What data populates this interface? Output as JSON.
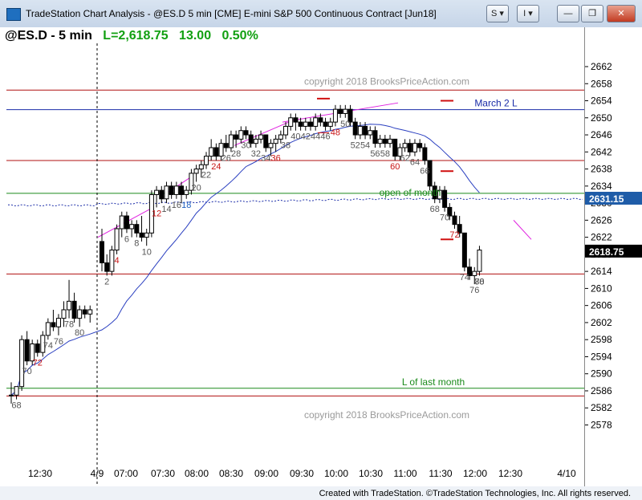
{
  "window": {
    "title": "TradeStation Chart Analysis - @ES.D 5 min [CME] E-mini S&P 500 Continuous Contract [Jun18]",
    "menu_s": "S",
    "menu_i": "I",
    "minimize": "—",
    "restore": "❐",
    "close": "✕"
  },
  "header": {
    "symbol": "@ES.D - 5 min",
    "last": "L=2,618.75",
    "change": "13.00",
    "pct": "0.50%"
  },
  "footer": "Created with TradeStation. ©TradeStation Technologies, Inc. All rights reserved.",
  "chart_data": {
    "type": "candlestick",
    "ylim": [
      2576,
      2666
    ],
    "y_ticks": [
      2578,
      2582,
      2586,
      2590,
      2594,
      2598,
      2602,
      2606,
      2610,
      2614,
      2618,
      2622,
      2626,
      2630,
      2634,
      2638,
      2642,
      2646,
      2650,
      2654,
      2658,
      2662
    ],
    "x_ticks": [
      "12:30",
      "4/9",
      "07:00",
      "07:30",
      "08:00",
      "08:30",
      "09:00",
      "09:30",
      "10:00",
      "10:30",
      "11:00",
      "11:30",
      "12:00",
      "12:30",
      "4/10"
    ],
    "price_badges": [
      {
        "value": "2631.15",
        "color": "#1e5ca8"
      },
      {
        "value": "2618.75",
        "color": "#000000"
      }
    ],
    "watermarks": [
      "copyright 2018 BrooksPriceAction.com",
      "copyright 2018 BrooksPriceAction.com"
    ],
    "annotations": [
      {
        "text": "March 2 L",
        "color": "#1a2ca8",
        "price": 2651.9
      },
      {
        "text": "open of month",
        "color": "#1a8a1a",
        "price": 2631.0
      },
      {
        "text": "L of last month",
        "color": "#1a8a1a",
        "price": 2586.6
      }
    ],
    "hlines": [
      {
        "price": 2656.5,
        "color": "#b01010"
      },
      {
        "price": 2651.9,
        "color": "#1a2ca8"
      },
      {
        "price": 2640.0,
        "color": "#b01010"
      },
      {
        "price": 2632.3,
        "color": "#1a8a1a"
      },
      {
        "price": 2613.4,
        "color": "#b01010"
      },
      {
        "price": 2586.6,
        "color": "#1a8a1a"
      },
      {
        "price": 2584.8,
        "color": "#b01010"
      }
    ],
    "bar_numbers": [
      {
        "t": "68",
        "c": "gray"
      },
      {
        "t": "70",
        "c": "gray"
      },
      {
        "t": "72",
        "c": "red"
      },
      {
        "t": "74",
        "c": "gray"
      },
      {
        "t": "76",
        "c": "gray"
      },
      {
        "t": "78",
        "c": "gray"
      },
      {
        "t": "80",
        "c": "gray"
      },
      {
        "t": "2",
        "c": "gray"
      },
      {
        "t": "4",
        "c": "red"
      },
      {
        "t": "6",
        "c": "gray"
      },
      {
        "t": "8",
        "c": "gray"
      },
      {
        "t": "10",
        "c": "gray"
      },
      {
        "t": "12",
        "c": "red"
      },
      {
        "t": "14",
        "c": "gray"
      },
      {
        "t": "16",
        "c": "gray"
      },
      {
        "t": "18",
        "c": "blue"
      },
      {
        "t": "20",
        "c": "gray"
      },
      {
        "t": "22",
        "c": "gray"
      },
      {
        "t": "24",
        "c": "red"
      },
      {
        "t": "26",
        "c": "gray"
      },
      {
        "t": "28",
        "c": "gray"
      },
      {
        "t": "30",
        "c": "gray"
      },
      {
        "t": "32",
        "c": "gray"
      },
      {
        "t": "34",
        "c": "gray"
      },
      {
        "t": "36",
        "c": "red"
      },
      {
        "t": "38",
        "c": "gray"
      },
      {
        "t": "40",
        "c": "gray"
      },
      {
        "t": "42",
        "c": "gray"
      },
      {
        "t": "44",
        "c": "gray"
      },
      {
        "t": "46",
        "c": "gray"
      },
      {
        "t": "48",
        "c": "red"
      },
      {
        "t": "50",
        "c": "gray"
      },
      {
        "t": "52",
        "c": "gray"
      },
      {
        "t": "54",
        "c": "gray"
      },
      {
        "t": "56",
        "c": "gray"
      },
      {
        "t": "58",
        "c": "gray"
      },
      {
        "t": "60",
        "c": "red"
      },
      {
        "t": "62",
        "c": "gray"
      },
      {
        "t": "64",
        "c": "gray"
      },
      {
        "t": "66",
        "c": "gray"
      },
      {
        "t": "68",
        "c": "gray"
      },
      {
        "t": "70",
        "c": "gray"
      },
      {
        "t": "72",
        "c": "red"
      },
      {
        "t": "74",
        "c": "gray"
      },
      {
        "t": "76",
        "c": "gray"
      },
      {
        "t": "78",
        "c": "gray"
      },
      {
        "t": "80",
        "c": "gray"
      }
    ],
    "candles": [
      [
        2585,
        2588,
        2583,
        2585
      ],
      [
        2585,
        2587,
        2584,
        2587
      ],
      [
        2587,
        2599,
        2586,
        2598
      ],
      [
        2598,
        2600,
        2592,
        2593
      ],
      [
        2593,
        2598,
        2592,
        2597
      ],
      [
        2597,
        2598,
        2594,
        2595
      ],
      [
        2595,
        2600,
        2594,
        2599
      ],
      [
        2599,
        2603,
        2598,
        2602
      ],
      [
        2602,
        2605,
        2600,
        2601
      ],
      [
        2601,
        2604,
        2599,
        2603
      ],
      [
        2603,
        2607,
        2601,
        2605
      ],
      [
        2605,
        2612,
        2603,
        2607
      ],
      [
        2607,
        2609,
        2602,
        2603
      ],
      [
        2603,
        2606,
        2601,
        2605
      ],
      [
        2605,
        2606,
        2603,
        2604
      ],
      [
        2604,
        2606,
        2602,
        2605
      ],
      [
        2621,
        2624,
        2614,
        2616
      ],
      [
        2616,
        2618,
        2613,
        2614
      ],
      [
        2614,
        2620,
        2613,
        2619
      ],
      [
        2619,
        2625,
        2618,
        2624
      ],
      [
        2624,
        2628,
        2622,
        2627
      ],
      [
        2627,
        2628,
        2623,
        2624
      ],
      [
        2624,
        2626,
        2622,
        2625
      ],
      [
        2625,
        2626,
        2622,
        2623
      ],
      [
        2623,
        2627,
        2621,
        2622
      ],
      [
        2622,
        2624,
        2620,
        2623
      ],
      [
        2623,
        2633,
        2622,
        2632
      ],
      [
        2632,
        2634,
        2629,
        2633
      ],
      [
        2633,
        2634,
        2630,
        2631
      ],
      [
        2631,
        2635,
        2630,
        2634
      ],
      [
        2634,
        2635,
        2631,
        2632
      ],
      [
        2632,
        2635,
        2631,
        2634
      ],
      [
        2634,
        2635,
        2630,
        2632
      ],
      [
        2632,
        2634,
        2631,
        2633
      ],
      [
        2633,
        2638,
        2632,
        2637
      ],
      [
        2637,
        2639,
        2635,
        2638
      ],
      [
        2638,
        2640,
        2636,
        2639
      ],
      [
        2639,
        2642,
        2638,
        2641
      ],
      [
        2641,
        2645,
        2640,
        2643
      ],
      [
        2643,
        2644,
        2640,
        2641
      ],
      [
        2641,
        2645,
        2640,
        2644
      ],
      [
        2644,
        2646,
        2642,
        2643
      ],
      [
        2643,
        2647,
        2642,
        2646
      ],
      [
        2646,
        2647,
        2643,
        2645
      ],
      [
        2645,
        2648,
        2644,
        2647
      ],
      [
        2647,
        2648,
        2645,
        2646
      ],
      [
        2646,
        2647,
        2643,
        2644
      ],
      [
        2644,
        2646,
        2643,
        2645
      ],
      [
        2645,
        2647,
        2644,
        2646
      ],
      [
        2646,
        2646,
        2642,
        2643
      ],
      [
        2643,
        2645,
        2641,
        2644
      ],
      [
        2644,
        2646,
        2642,
        2645
      ],
      [
        2645,
        2647,
        2644,
        2646
      ],
      [
        2646,
        2649,
        2645,
        2648
      ],
      [
        2648,
        2651,
        2647,
        2650
      ],
      [
        2650,
        2651,
        2647,
        2649
      ],
      [
        2649,
        2650,
        2647,
        2648
      ],
      [
        2648,
        2650,
        2647,
        2649
      ],
      [
        2649,
        2650,
        2647,
        2648
      ],
      [
        2648,
        2651,
        2647,
        2650
      ],
      [
        2650,
        2651,
        2648,
        2649
      ],
      [
        2649,
        2650,
        2647,
        2648
      ],
      [
        2648,
        2650,
        2647,
        2649
      ],
      [
        2649,
        2653,
        2648,
        2652
      ],
      [
        2652,
        2653,
        2650,
        2651
      ],
      [
        2651,
        2653,
        2650,
        2652
      ],
      [
        2652,
        2653,
        2648,
        2649
      ],
      [
        2649,
        2650,
        2645,
        2646
      ],
      [
        2646,
        2649,
        2645,
        2648
      ],
      [
        2648,
        2649,
        2645,
        2646
      ],
      [
        2646,
        2648,
        2645,
        2647
      ],
      [
        2647,
        2648,
        2643,
        2644
      ],
      [
        2644,
        2646,
        2643,
        2645
      ],
      [
        2645,
        2646,
        2643,
        2644
      ],
      [
        2644,
        2646,
        2643,
        2645
      ],
      [
        2645,
        2645,
        2640,
        2641
      ],
      [
        2641,
        2644,
        2640,
        2643
      ],
      [
        2643,
        2645,
        2642,
        2644
      ],
      [
        2644,
        2645,
        2641,
        2642
      ],
      [
        2642,
        2645,
        2641,
        2644
      ],
      [
        2644,
        2645,
        2642,
        2643
      ],
      [
        2643,
        2644,
        2639,
        2640
      ],
      [
        2640,
        2640,
        2633,
        2634
      ],
      [
        2634,
        2635,
        2630,
        2631
      ],
      [
        2631,
        2634,
        2630,
        2633
      ],
      [
        2633,
        2634,
        2628,
        2629
      ],
      [
        2629,
        2630,
        2626,
        2627
      ],
      [
        2627,
        2628,
        2624,
        2625
      ],
      [
        2625,
        2627,
        2622,
        2623
      ],
      [
        2623,
        2623,
        2614,
        2615
      ],
      [
        2615,
        2617,
        2612,
        2613
      ],
      [
        2613,
        2615,
        2611,
        2614
      ],
      [
        2614,
        2620,
        2613,
        2619
      ]
    ]
  }
}
